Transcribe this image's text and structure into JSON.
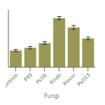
{
  "chart_data": {
    "type": "bar",
    "xlabel": "Fungi",
    "categories": [
      "Controls",
      "P93",
      "PLO6",
      "Pindo",
      "Plocor",
      "PLO13"
    ],
    "values": [
      1.8,
      2.1,
      2.6,
      5.3,
      4.3,
      3.1
    ],
    "errors": [
      0.12,
      0.13,
      0.15,
      0.18,
      0.22,
      0.15
    ],
    "color": "#999955",
    "ylim": [
      0,
      6.2
    ],
    "grid": false,
    "tick_labels": "x"
  }
}
